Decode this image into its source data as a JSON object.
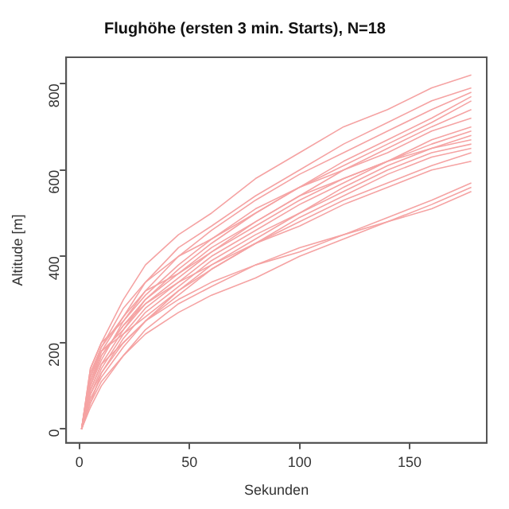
{
  "chart_data": {
    "type": "line",
    "title": "Flughöhe (ersten 3 min. Starts), N=18",
    "xlabel": "Sekunden",
    "ylabel": "Altitude [m]",
    "x": [
      1,
      5,
      10,
      20,
      30,
      45,
      60,
      80,
      100,
      120,
      140,
      160,
      178
    ],
    "xlim": [
      -6,
      185
    ],
    "xticks": [
      0,
      50,
      100,
      150
    ],
    "ylim": [
      -32,
      861
    ],
    "yticks": [
      0,
      200,
      400,
      600,
      800
    ],
    "grid": false,
    "legend": false,
    "marker": "none",
    "line_style": "solid",
    "series": [
      {
        "color": "#f5a3a3",
        "values": [
          0,
          140,
          200,
          300,
          380,
          450,
          500,
          580,
          640,
          700,
          740,
          790,
          820
        ]
      },
      {
        "color": "#f5a3a3",
        "values": [
          0,
          120,
          180,
          260,
          340,
          420,
          470,
          540,
          600,
          660,
          710,
          760,
          790
        ]
      },
      {
        "color": "#f5a3a3",
        "values": [
          0,
          100,
          160,
          250,
          320,
          400,
          460,
          530,
          590,
          640,
          690,
          740,
          780
        ]
      },
      {
        "color": "#f5a3a3",
        "values": [
          0,
          130,
          190,
          280,
          340,
          400,
          440,
          510,
          560,
          620,
          670,
          720,
          770
        ]
      },
      {
        "color": "#f5a3a3",
        "values": [
          0,
          90,
          150,
          230,
          300,
          370,
          430,
          500,
          560,
          610,
          660,
          710,
          760
        ]
      },
      {
        "color": "#f5a3a3",
        "values": [
          0,
          110,
          170,
          240,
          290,
          350,
          410,
          480,
          540,
          600,
          650,
          700,
          740
        ]
      },
      {
        "color": "#f5a3a3",
        "values": [
          0,
          140,
          200,
          250,
          310,
          380,
          440,
          500,
          560,
          600,
          640,
          690,
          720
        ]
      },
      {
        "color": "#f5a3a3",
        "values": [
          0,
          80,
          140,
          220,
          280,
          340,
          400,
          460,
          520,
          570,
          620,
          670,
          700
        ]
      },
      {
        "color": "#f5a3a3",
        "values": [
          0,
          120,
          190,
          260,
          320,
          360,
          410,
          470,
          530,
          580,
          620,
          660,
          690
        ]
      },
      {
        "color": "#f5a3a3",
        "values": [
          0,
          60,
          130,
          210,
          270,
          330,
          390,
          450,
          500,
          560,
          610,
          650,
          680
        ]
      },
      {
        "color": "#f5a3a3",
        "values": [
          0,
          100,
          170,
          240,
          300,
          360,
          420,
          480,
          540,
          580,
          620,
          650,
          670
        ]
      },
      {
        "color": "#f5a3a3",
        "values": [
          0,
          130,
          180,
          220,
          260,
          320,
          380,
          440,
          500,
          550,
          600,
          640,
          660
        ]
      },
      {
        "color": "#f5a3a3",
        "values": [
          0,
          90,
          150,
          200,
          250,
          310,
          370,
          430,
          490,
          540,
          590,
          630,
          650
        ]
      },
      {
        "color": "#f5a3a3",
        "values": [
          0,
          70,
          120,
          190,
          250,
          320,
          370,
          430,
          480,
          530,
          570,
          610,
          640
        ]
      },
      {
        "color": "#f5a3a3",
        "values": [
          0,
          110,
          180,
          230,
          290,
          340,
          380,
          430,
          470,
          520,
          560,
          600,
          620
        ]
      },
      {
        "color": "#f5a3a3",
        "values": [
          0,
          60,
          110,
          170,
          230,
          290,
          330,
          380,
          420,
          450,
          490,
          530,
          570
        ]
      },
      {
        "color": "#f5a3a3",
        "values": [
          0,
          80,
          130,
          200,
          250,
          300,
          340,
          380,
          410,
          450,
          480,
          520,
          560
        ]
      },
      {
        "color": "#f5a3a3",
        "values": [
          0,
          50,
          100,
          170,
          220,
          270,
          310,
          350,
          400,
          440,
          480,
          510,
          550
        ]
      }
    ]
  }
}
